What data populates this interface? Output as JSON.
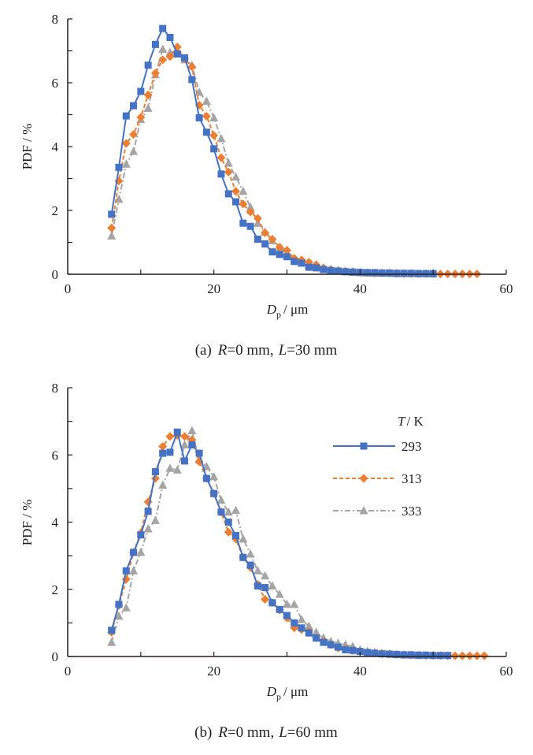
{
  "chart_data": [
    {
      "type": "line",
      "panel": "a",
      "caption": {
        "prefix": "(a)",
        "r_var": "R",
        "r_val": "=0 mm,",
        "l_var": "L",
        "l_val": "=30 mm"
      },
      "xlabel": {
        "var": "D",
        "sub": "p",
        "unit": "/ μm"
      },
      "ylabel": "PDF / %",
      "xlim": [
        0,
        60
      ],
      "ylim": [
        0,
        8
      ],
      "xticks": [
        0,
        20,
        40,
        60
      ],
      "yticks": [
        0,
        2,
        4,
        6,
        8
      ],
      "grid": false,
      "legend": null,
      "series": [
        {
          "name": "293",
          "color": "#4472c4",
          "marker": "square",
          "dash": "solid",
          "x": [
            6,
            7,
            8,
            9,
            10,
            11,
            12,
            13,
            14,
            15,
            16,
            17,
            18,
            19,
            20,
            21,
            22,
            23,
            24,
            25,
            26,
            27,
            28,
            29,
            30,
            31,
            32,
            33,
            34,
            35,
            36,
            37,
            38,
            39,
            40,
            41,
            42,
            43,
            44,
            45,
            46,
            47,
            48,
            49,
            50
          ],
          "y": [
            1.88,
            3.35,
            4.96,
            5.28,
            5.73,
            6.55,
            7.2,
            7.7,
            7.42,
            6.9,
            6.78,
            6.1,
            4.9,
            4.45,
            3.93,
            3.14,
            2.52,
            2.27,
            1.6,
            1.5,
            1.1,
            0.95,
            0.7,
            0.62,
            0.55,
            0.4,
            0.35,
            0.22,
            0.2,
            0.15,
            0.12,
            0.1,
            0.08,
            0.07,
            0.06,
            0.05,
            0.05,
            0.04,
            0.04,
            0.03,
            0.03,
            0.03,
            0.02,
            0.02,
            0.02
          ]
        },
        {
          "name": "313",
          "color": "#ed7d31",
          "marker": "diamond",
          "dash": "dashed",
          "x": [
            6,
            7,
            8,
            9,
            10,
            11,
            12,
            13,
            14,
            15,
            16,
            17,
            18,
            19,
            20,
            21,
            22,
            23,
            24,
            25,
            26,
            27,
            28,
            29,
            30,
            31,
            32,
            33,
            34,
            35,
            36,
            37,
            38,
            39,
            40,
            41,
            42,
            43,
            44,
            45,
            46,
            47,
            48,
            49,
            50,
            51,
            52,
            53,
            54,
            55,
            56
          ],
          "y": [
            1.45,
            2.92,
            4.1,
            4.38,
            4.92,
            5.62,
            6.3,
            6.72,
            6.82,
            7.12,
            6.75,
            6.5,
            5.3,
            4.95,
            4.35,
            3.65,
            3.2,
            2.6,
            2.2,
            1.95,
            1.75,
            1.3,
            1.1,
            0.85,
            0.75,
            0.5,
            0.45,
            0.38,
            0.3,
            0.2,
            0.15,
            0.12,
            0.1,
            0.08,
            0.06,
            0.05,
            0.04,
            0.04,
            0.03,
            0.03,
            0.02,
            0.02,
            0.02,
            0.02,
            0.02,
            0.01,
            0.01,
            0.01,
            0.01,
            0.01,
            0.01
          ]
        },
        {
          "name": "333",
          "color": "#a5a5a5",
          "marker": "triangle",
          "dash": "dashdot",
          "x": [
            6,
            7,
            8,
            9,
            10,
            11,
            12,
            13,
            14,
            15,
            16,
            17,
            18,
            19,
            20,
            21,
            22,
            23,
            24,
            25,
            26,
            27,
            28,
            29,
            30,
            31,
            32,
            33,
            34,
            35,
            36,
            37,
            38,
            39,
            40,
            41,
            42,
            43,
            44,
            45,
            46,
            47,
            48,
            49,
            50
          ],
          "y": [
            1.2,
            2.35,
            3.45,
            3.85,
            4.85,
            5.2,
            6.25,
            7.05,
            6.95,
            7.0,
            6.72,
            6.55,
            5.7,
            5.42,
            4.9,
            4.25,
            3.48,
            3.05,
            2.6,
            2.1,
            1.6,
            1.32,
            1.05,
            0.82,
            0.62,
            0.48,
            0.35,
            0.28,
            0.22,
            0.16,
            0.12,
            0.1,
            0.08,
            0.06,
            0.05,
            0.04,
            0.03,
            0.03,
            0.03,
            0.02,
            0.02,
            0.02,
            0.02,
            0.02,
            0.01
          ]
        }
      ]
    },
    {
      "type": "line",
      "panel": "b",
      "caption": {
        "prefix": "(b)",
        "r_var": "R",
        "r_val": "=0 mm,",
        "l_var": "L",
        "l_val": "=60 mm"
      },
      "xlabel": {
        "var": "D",
        "sub": "p",
        "unit": "/ μm"
      },
      "ylabel": "PDF / %",
      "xlim": [
        0,
        60
      ],
      "ylim": [
        0,
        8
      ],
      "xticks": [
        0,
        20,
        40,
        60
      ],
      "yticks": [
        0,
        2,
        4,
        6,
        8
      ],
      "grid": false,
      "legend": {
        "title_var": "T",
        "title_unit": "/ K",
        "placement": "top-right",
        "entries": [
          "293",
          "313",
          "333"
        ]
      },
      "series": [
        {
          "name": "293",
          "color": "#4472c4",
          "marker": "square",
          "dash": "solid",
          "x": [
            6,
            7,
            8,
            9,
            10,
            11,
            12,
            13,
            14,
            15,
            16,
            17,
            18,
            19,
            20,
            21,
            22,
            23,
            24,
            25,
            26,
            27,
            28,
            29,
            30,
            31,
            32,
            33,
            34,
            35,
            36,
            37,
            38,
            39,
            40,
            41,
            42,
            43,
            44,
            45,
            46,
            47,
            48,
            49,
            50,
            51,
            52
          ],
          "y": [
            0.78,
            1.55,
            2.55,
            3.1,
            3.62,
            4.32,
            5.5,
            6.05,
            6.08,
            6.68,
            5.82,
            6.3,
            6.05,
            5.3,
            4.85,
            4.3,
            4.0,
            3.6,
            2.95,
            2.72,
            2.1,
            2.05,
            1.6,
            1.4,
            1.22,
            1.0,
            0.85,
            0.7,
            0.55,
            0.42,
            0.35,
            0.28,
            0.2,
            0.18,
            0.15,
            0.12,
            0.1,
            0.08,
            0.07,
            0.06,
            0.05,
            0.05,
            0.04,
            0.04,
            0.03,
            0.03,
            0.03
          ]
        },
        {
          "name": "313",
          "color": "#ed7d31",
          "marker": "diamond",
          "dash": "dashed",
          "x": [
            6,
            7,
            8,
            9,
            10,
            11,
            12,
            13,
            14,
            15,
            16,
            17,
            18,
            19,
            20,
            21,
            22,
            23,
            24,
            25,
            26,
            27,
            28,
            29,
            30,
            31,
            32,
            33,
            34,
            35,
            36,
            37,
            38,
            39,
            40,
            41,
            42,
            43,
            44,
            45,
            46,
            47,
            48,
            49,
            50,
            51,
            52,
            53,
            54,
            55,
            56,
            57
          ],
          "y": [
            0.72,
            1.52,
            2.3,
            3.1,
            3.68,
            4.6,
            5.3,
            6.25,
            6.55,
            6.58,
            6.55,
            6.45,
            5.8,
            5.3,
            4.85,
            4.3,
            3.7,
            3.5,
            2.95,
            2.65,
            2.15,
            1.7,
            1.6,
            1.38,
            1.15,
            0.85,
            0.8,
            0.75,
            0.55,
            0.45,
            0.35,
            0.25,
            0.22,
            0.18,
            0.15,
            0.12,
            0.1,
            0.08,
            0.07,
            0.06,
            0.05,
            0.04,
            0.04,
            0.03,
            0.03,
            0.03,
            0.02,
            0.02,
            0.02,
            0.02,
            0.02,
            0.02
          ]
        },
        {
          "name": "333",
          "color": "#a5a5a5",
          "marker": "triangle",
          "dash": "dashdot",
          "x": [
            6,
            7,
            8,
            9,
            10,
            11,
            12,
            13,
            14,
            15,
            16,
            17,
            18,
            19,
            20,
            21,
            22,
            23,
            24,
            25,
            26,
            27,
            28,
            29,
            30,
            31,
            32,
            33,
            34,
            35,
            36,
            37,
            38,
            39,
            40,
            41,
            42,
            43,
            44,
            45,
            46,
            47,
            48
          ],
          "y": [
            0.42,
            1.2,
            1.45,
            2.55,
            3.1,
            3.8,
            4.05,
            5.1,
            5.6,
            5.55,
            6.3,
            6.72,
            5.85,
            5.65,
            5.35,
            4.65,
            4.3,
            4.35,
            3.5,
            3.05,
            2.55,
            2.4,
            2.1,
            1.85,
            1.55,
            1.55,
            1.1,
            0.9,
            0.72,
            0.55,
            0.45,
            0.4,
            0.35,
            0.3,
            0.2,
            0.15,
            0.12,
            0.1,
            0.08,
            0.06,
            0.05,
            0.04,
            0.03
          ]
        }
      ]
    }
  ]
}
